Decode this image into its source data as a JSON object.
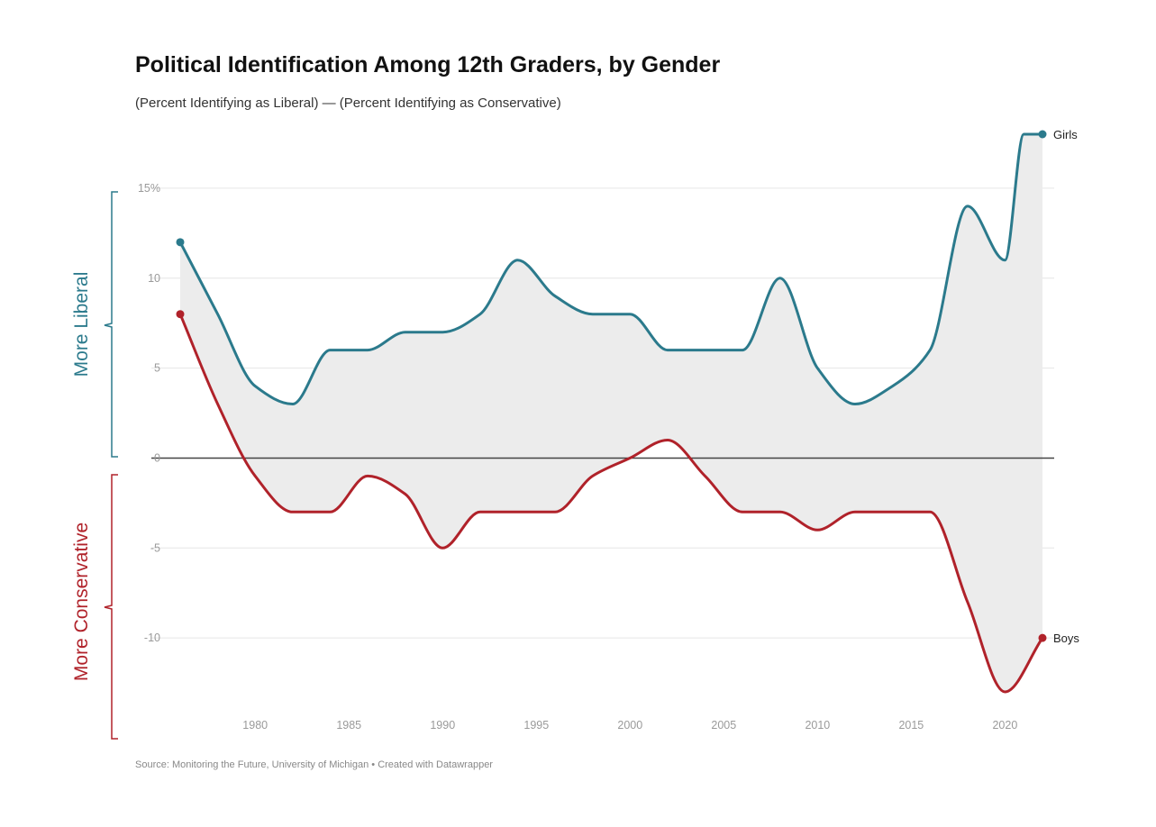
{
  "chart_data": {
    "type": "line",
    "title": "Political Identification Among 12th Graders, by Gender",
    "subtitle": "(Percent Identifying as Liberal) — (Percent Identifying as Conservative)",
    "source": "Source: Monitoring the Future, University of Michigan • Created with Datawrapper",
    "x_ticks": [
      1980,
      1985,
      1990,
      1995,
      2000,
      2005,
      2010,
      2015,
      2020
    ],
    "y_ticks": [
      {
        "value": 15,
        "label": "15%"
      },
      {
        "value": 10,
        "label": "10"
      },
      {
        "value": 5,
        "label": "5"
      },
      {
        "value": 0,
        "label": "0"
      },
      {
        "value": -5,
        "label": "-5"
      },
      {
        "value": -10,
        "label": "-10"
      }
    ],
    "xlim": [
      1976,
      2022
    ],
    "ylim": [
      -14,
      18
    ],
    "bracket_labels": {
      "upper": "More Liberal",
      "lower": "More Conservative"
    },
    "colors": {
      "girls": "#2b7a8c",
      "boys": "#b0222a",
      "fill": "#ececec",
      "zero_line": "#444444",
      "grid": "#e6e6e6"
    },
    "series": [
      {
        "name": "Girls",
        "x": [
          1976,
          1978,
          1980,
          1982,
          1984,
          1986,
          1988,
          1990,
          1992,
          1994,
          1996,
          1998,
          2000,
          2002,
          2004,
          2006,
          2008,
          2010,
          2012,
          2014,
          2016,
          2018,
          2020,
          2021,
          2022
        ],
        "values": [
          12,
          8,
          4,
          3,
          6,
          6,
          7,
          7,
          8,
          11,
          9,
          8,
          8,
          6,
          6,
          6,
          10,
          5,
          3,
          4,
          6,
          14,
          11,
          18,
          18
        ]
      },
      {
        "name": "Boys",
        "x": [
          1976,
          1978,
          1980,
          1982,
          1984,
          1986,
          1988,
          1990,
          1992,
          1994,
          1996,
          1998,
          2000,
          2002,
          2004,
          2006,
          2008,
          2010,
          2012,
          2014,
          2016,
          2018,
          2020,
          2022
        ],
        "values": [
          8,
          3,
          -1,
          -3,
          -3,
          -1,
          -2,
          -5,
          -3,
          -3,
          -3,
          -1,
          0,
          1,
          -1,
          -3,
          -3,
          -4,
          -3,
          -3,
          -3,
          -8,
          -13,
          -10
        ]
      }
    ]
  }
}
